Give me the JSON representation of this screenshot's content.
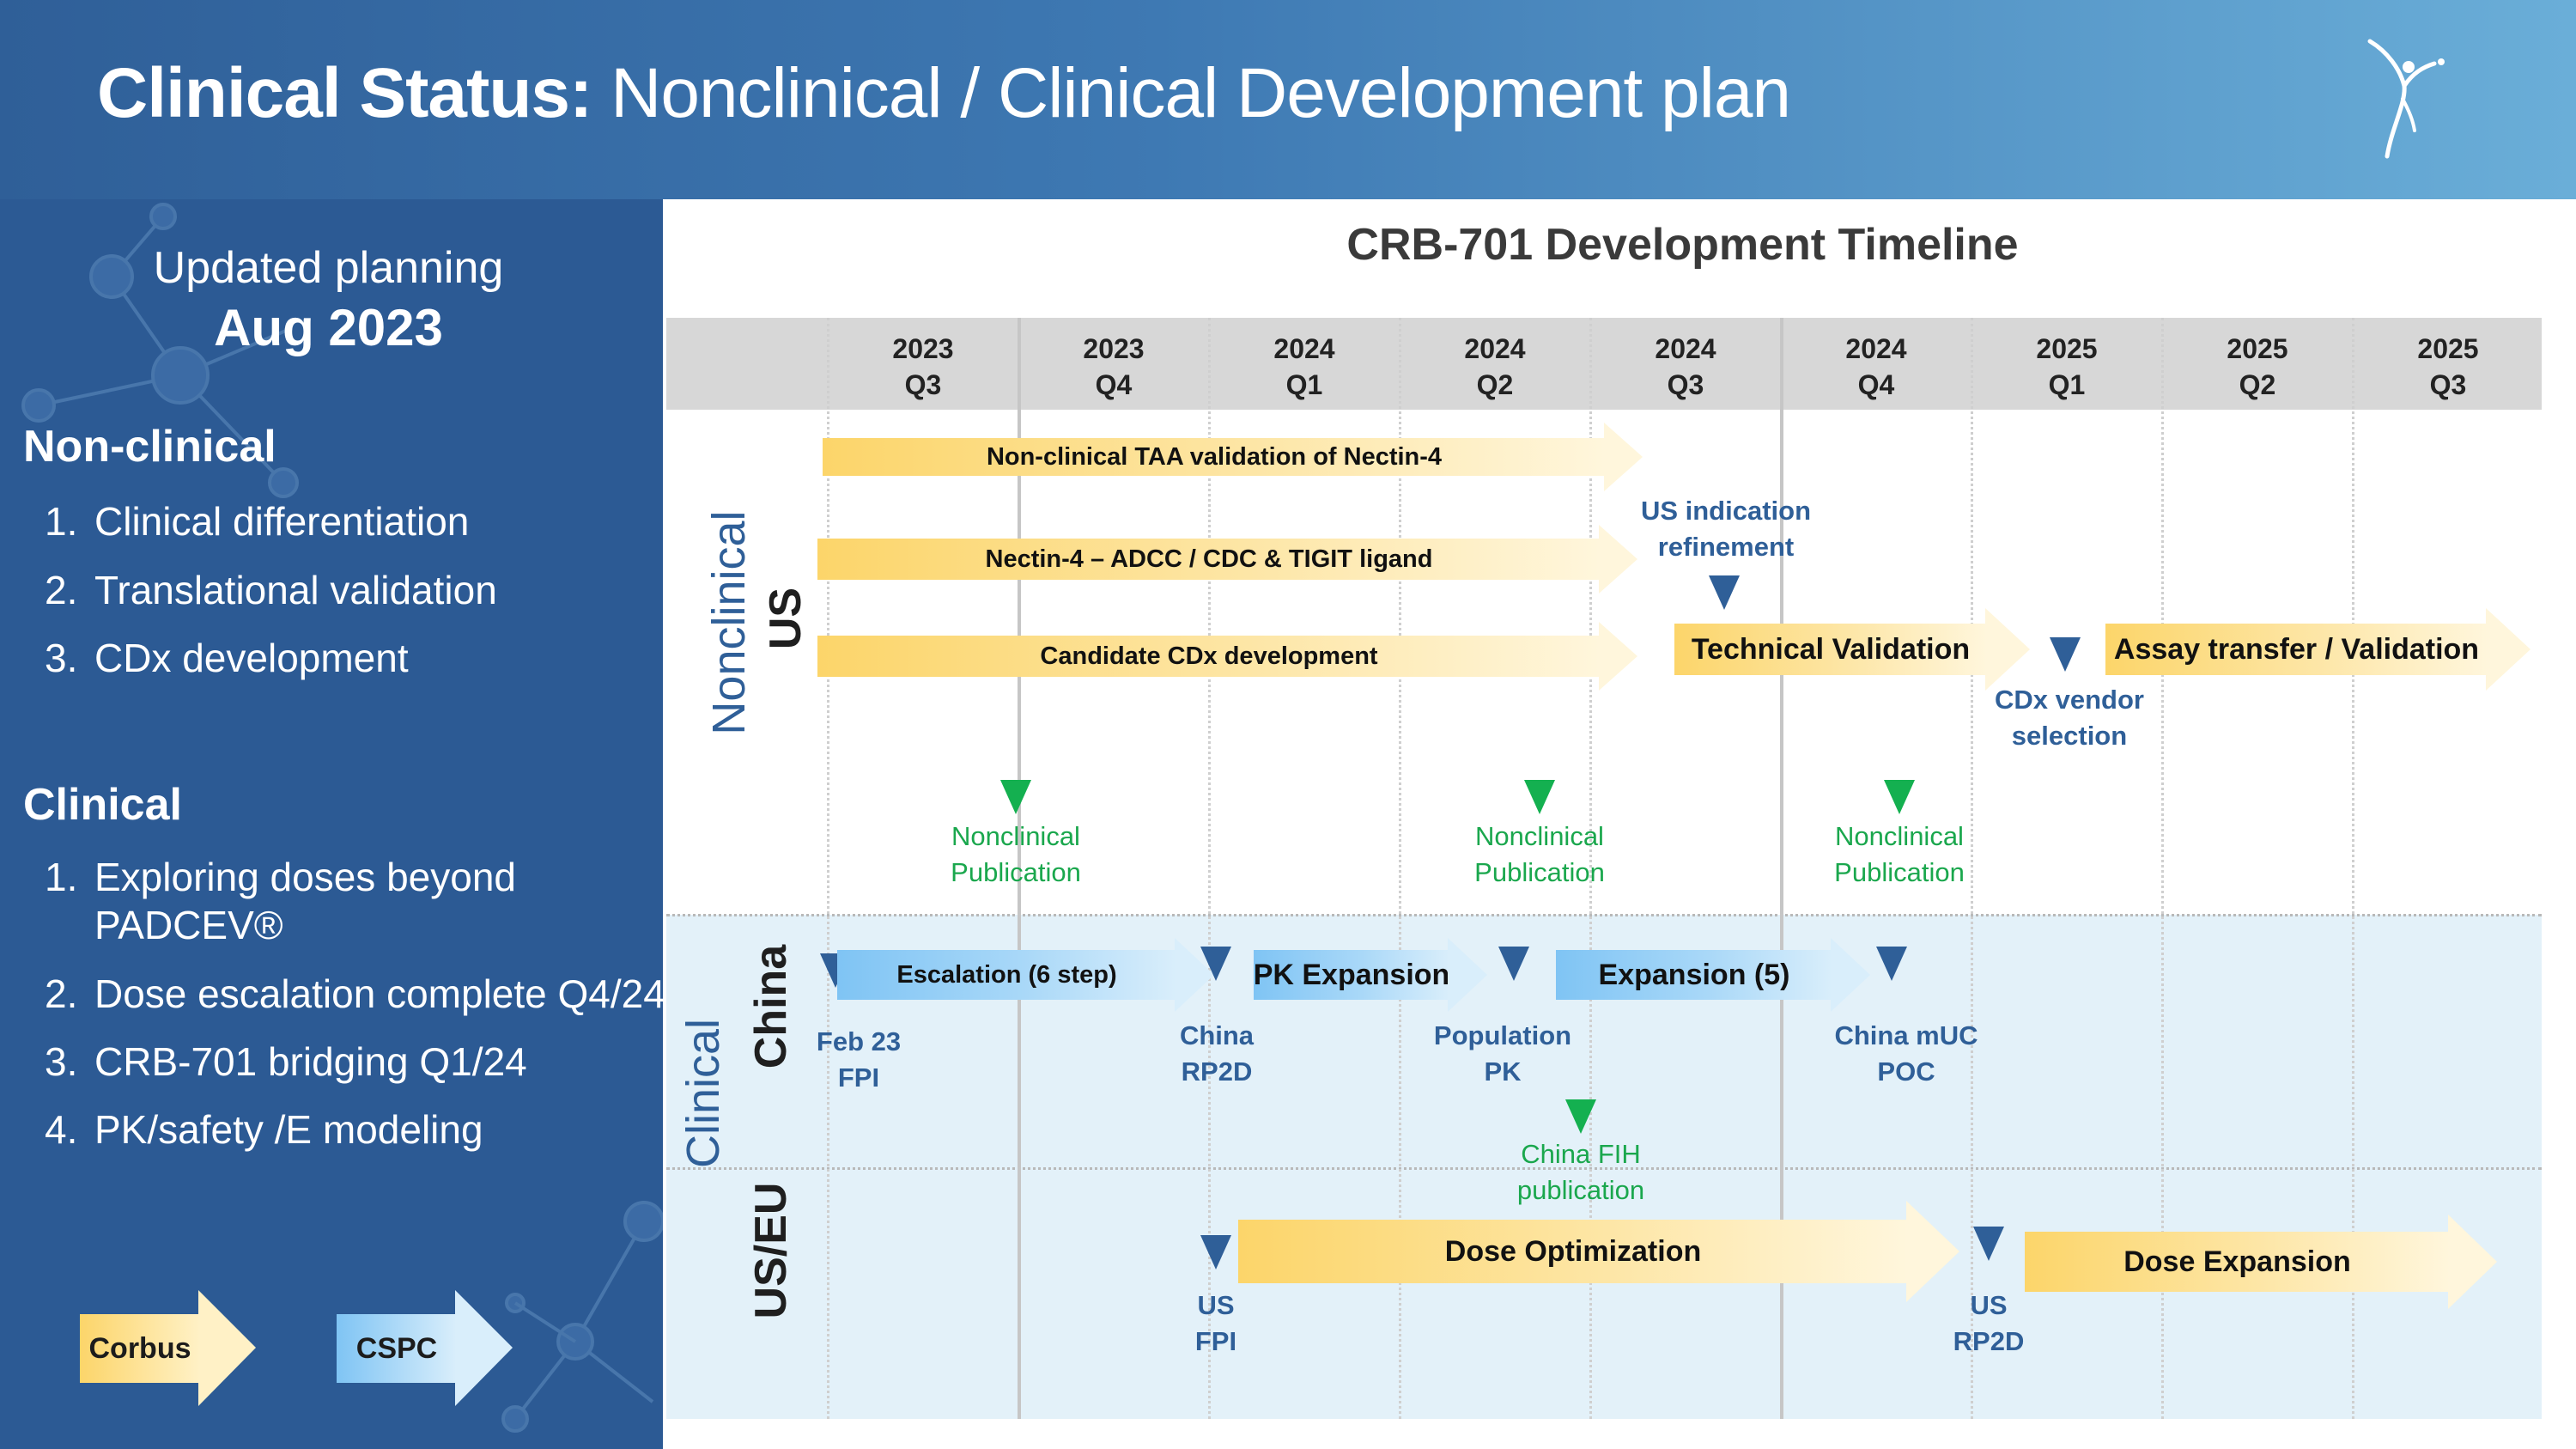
{
  "header": {
    "title_bold": "Clinical Status:",
    "title_rest": " Nonclinical / Clinical Development plan"
  },
  "sidebar": {
    "planning_line1": "Updated planning",
    "planning_line2": "Aug 2023",
    "nonclinical": {
      "heading": "Non-clinical",
      "items": [
        {
          "num": "1.",
          "text": "Clinical differentiation"
        },
        {
          "num": "2.",
          "text": "Translational validation"
        },
        {
          "num": "3.",
          "text": "CDx development"
        }
      ]
    },
    "clinical": {
      "heading": "Clinical",
      "items": [
        {
          "num": "1.",
          "text": "Exploring doses beyond",
          "text2": "PADCEV®"
        },
        {
          "num": "2.",
          "text": "Dose escalation complete Q4/24"
        },
        {
          "num": "3.",
          "text": "CRB-701 bridging Q1/24"
        },
        {
          "num": "4.",
          "text": "PK/safety /E  modeling"
        }
      ]
    },
    "legend": {
      "corbus": "Corbus",
      "cspc": "CSPC"
    }
  },
  "timeline": {
    "title": "CRB-701 Development Timeline",
    "quarters": [
      {
        "year": "2023",
        "q": "Q3"
      },
      {
        "year": "2023",
        "q": "Q4"
      },
      {
        "year": "2024",
        "q": "Q1"
      },
      {
        "year": "2024",
        "q": "Q2"
      },
      {
        "year": "2024",
        "q": "Q3"
      },
      {
        "year": "2024",
        "q": "Q4"
      },
      {
        "year": "2025",
        "q": "Q1"
      },
      {
        "year": "2025",
        "q": "Q2"
      },
      {
        "year": "2025",
        "q": "Q3"
      }
    ],
    "row_labels": {
      "nonclinical": "Nonclinical",
      "us": "US",
      "clinical": "Clinical",
      "china": "China",
      "useu": "US/EU"
    },
    "tasks": {
      "taa": "Non-clinical TAA validation of Nectin-4",
      "adcc": "Nectin-4 – ADCC / CDC & TIGIT ligand",
      "cdx": "Candidate CDx development",
      "techval": "Technical Validation",
      "assay": "Assay transfer / Validation",
      "escalation": "Escalation (6 step)",
      "pkexp": "PK Expansion",
      "exp5": "Expansion (5)",
      "doseopt": "Dose Optimization",
      "doseexp": "Dose Expansion"
    },
    "milestones": {
      "us_ind_1": "US indication",
      "us_ind_2": "refinement",
      "cdx_vendor_1": "CDx vendor",
      "cdx_vendor_2": "selection",
      "pub_1": "Nonclinical",
      "pub_2": "Publication",
      "feb_1": "Feb 23",
      "feb_2": "FPI",
      "china_rp2d_1": "China",
      "china_rp2d_2": "RP2D",
      "poppk_1": "Population",
      "poppk_2": "PK",
      "muc_1": "China mUC",
      "muc_2": "POC",
      "fih_1": "China FIH",
      "fih_2": "publication",
      "usfpi_1": "US",
      "usfpi_2": "FPI",
      "usrp2d_1": "US",
      "usrp2d_2": "RP2D"
    }
  }
}
